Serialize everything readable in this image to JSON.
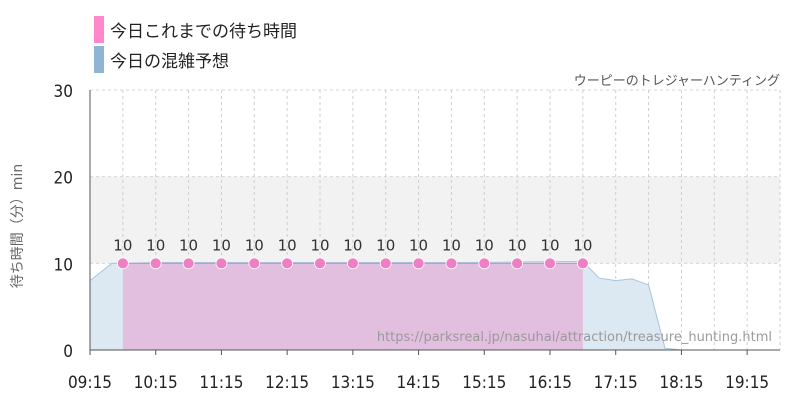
{
  "chart_data": {
    "type": "area",
    "title": "",
    "source_label": "ウーピーのトレジャーハンティング",
    "watermark": "https://parksreal.jp/nasuhai/attraction/treasure_hunting.html",
    "ylabel": "待ち時間（分）min",
    "xlabel": "",
    "ylim": [
      0,
      30
    ],
    "y_ticks": [
      0,
      10,
      20,
      30
    ],
    "x_ticks": [
      "09:15",
      "10:15",
      "11:15",
      "12:15",
      "13:15",
      "14:15",
      "15:15",
      "16:15",
      "17:15",
      "18:15",
      "19:15"
    ],
    "x_range": [
      "09:15",
      "19:45"
    ],
    "grid": true,
    "highlight_band": [
      10,
      20
    ],
    "legend_position": "top-left",
    "series": [
      {
        "name": "今日これまでの待ち時間",
        "color": "#ff88cc",
        "x": [
          "09:45",
          "10:15",
          "10:45",
          "11:15",
          "11:45",
          "12:15",
          "12:45",
          "13:15",
          "13:45",
          "14:15",
          "14:45",
          "15:15",
          "15:45",
          "16:15",
          "16:45"
        ],
        "values": [
          10,
          10,
          10,
          10,
          10,
          10,
          10,
          10,
          10,
          10,
          10,
          10,
          10,
          10,
          10
        ]
      },
      {
        "name": "今日の混雑予想",
        "color": "#90b4d4",
        "x": [
          "09:15",
          "09:35",
          "09:45",
          "10:15",
          "11:15",
          "12:15",
          "13:15",
          "14:15",
          "15:15",
          "16:15",
          "16:45",
          "17:00",
          "17:15",
          "17:30",
          "17:45",
          "18:00",
          "18:15",
          "19:15",
          "19:45"
        ],
        "values": [
          8,
          10,
          10,
          10.1,
          10.1,
          10.1,
          10.1,
          10.1,
          10.1,
          10.2,
          10.2,
          8.3,
          8,
          8.2,
          7.5,
          0.2,
          0,
          0,
          0
        ]
      }
    ]
  }
}
